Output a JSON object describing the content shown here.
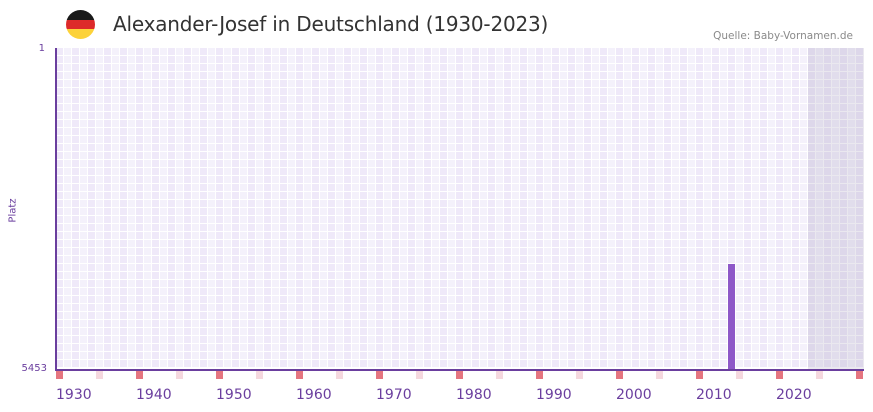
{
  "header": {
    "title": "Alexander-Josef in Deutschland (1930-2023)",
    "source": "Quelle: Baby-Vornamen.de",
    "flag_colors": [
      "#1a1a1a",
      "#dd2a2a",
      "#fcd23a"
    ]
  },
  "colors": {
    "axis": "#6a3e9e",
    "bar": "#8e58c8",
    "decade_marker": "#e57580",
    "half_decade_marker": "#f5d8de",
    "cell_a": "#efe9f9",
    "cell_b": "#f4f1fb"
  },
  "chart_data": {
    "type": "bar",
    "title": "Alexander-Josef in Deutschland (1930-2023)",
    "xlabel": "",
    "ylabel": "Platz",
    "y_axis_inverted": true,
    "ylim": [
      1,
      5453
    ],
    "y_ticks": [
      "1",
      "5453"
    ],
    "x_range": [
      1930,
      2030
    ],
    "x_ticks": [
      "1930",
      "1940",
      "1950",
      "1960",
      "1970",
      "1980",
      "1990",
      "2000",
      "2010",
      "2020"
    ],
    "shaded_region_start": 2024,
    "grid": true,
    "legend": null,
    "categories": [
      2014
    ],
    "values": [
      3660
    ],
    "series": [
      {
        "name": "Alexander-Josef",
        "points": [
          {
            "year": 2014,
            "rank": 3660
          }
        ]
      }
    ]
  },
  "axis": {
    "y_top_label": "1",
    "y_bottom_label": "5453",
    "y_title": "Platz"
  }
}
